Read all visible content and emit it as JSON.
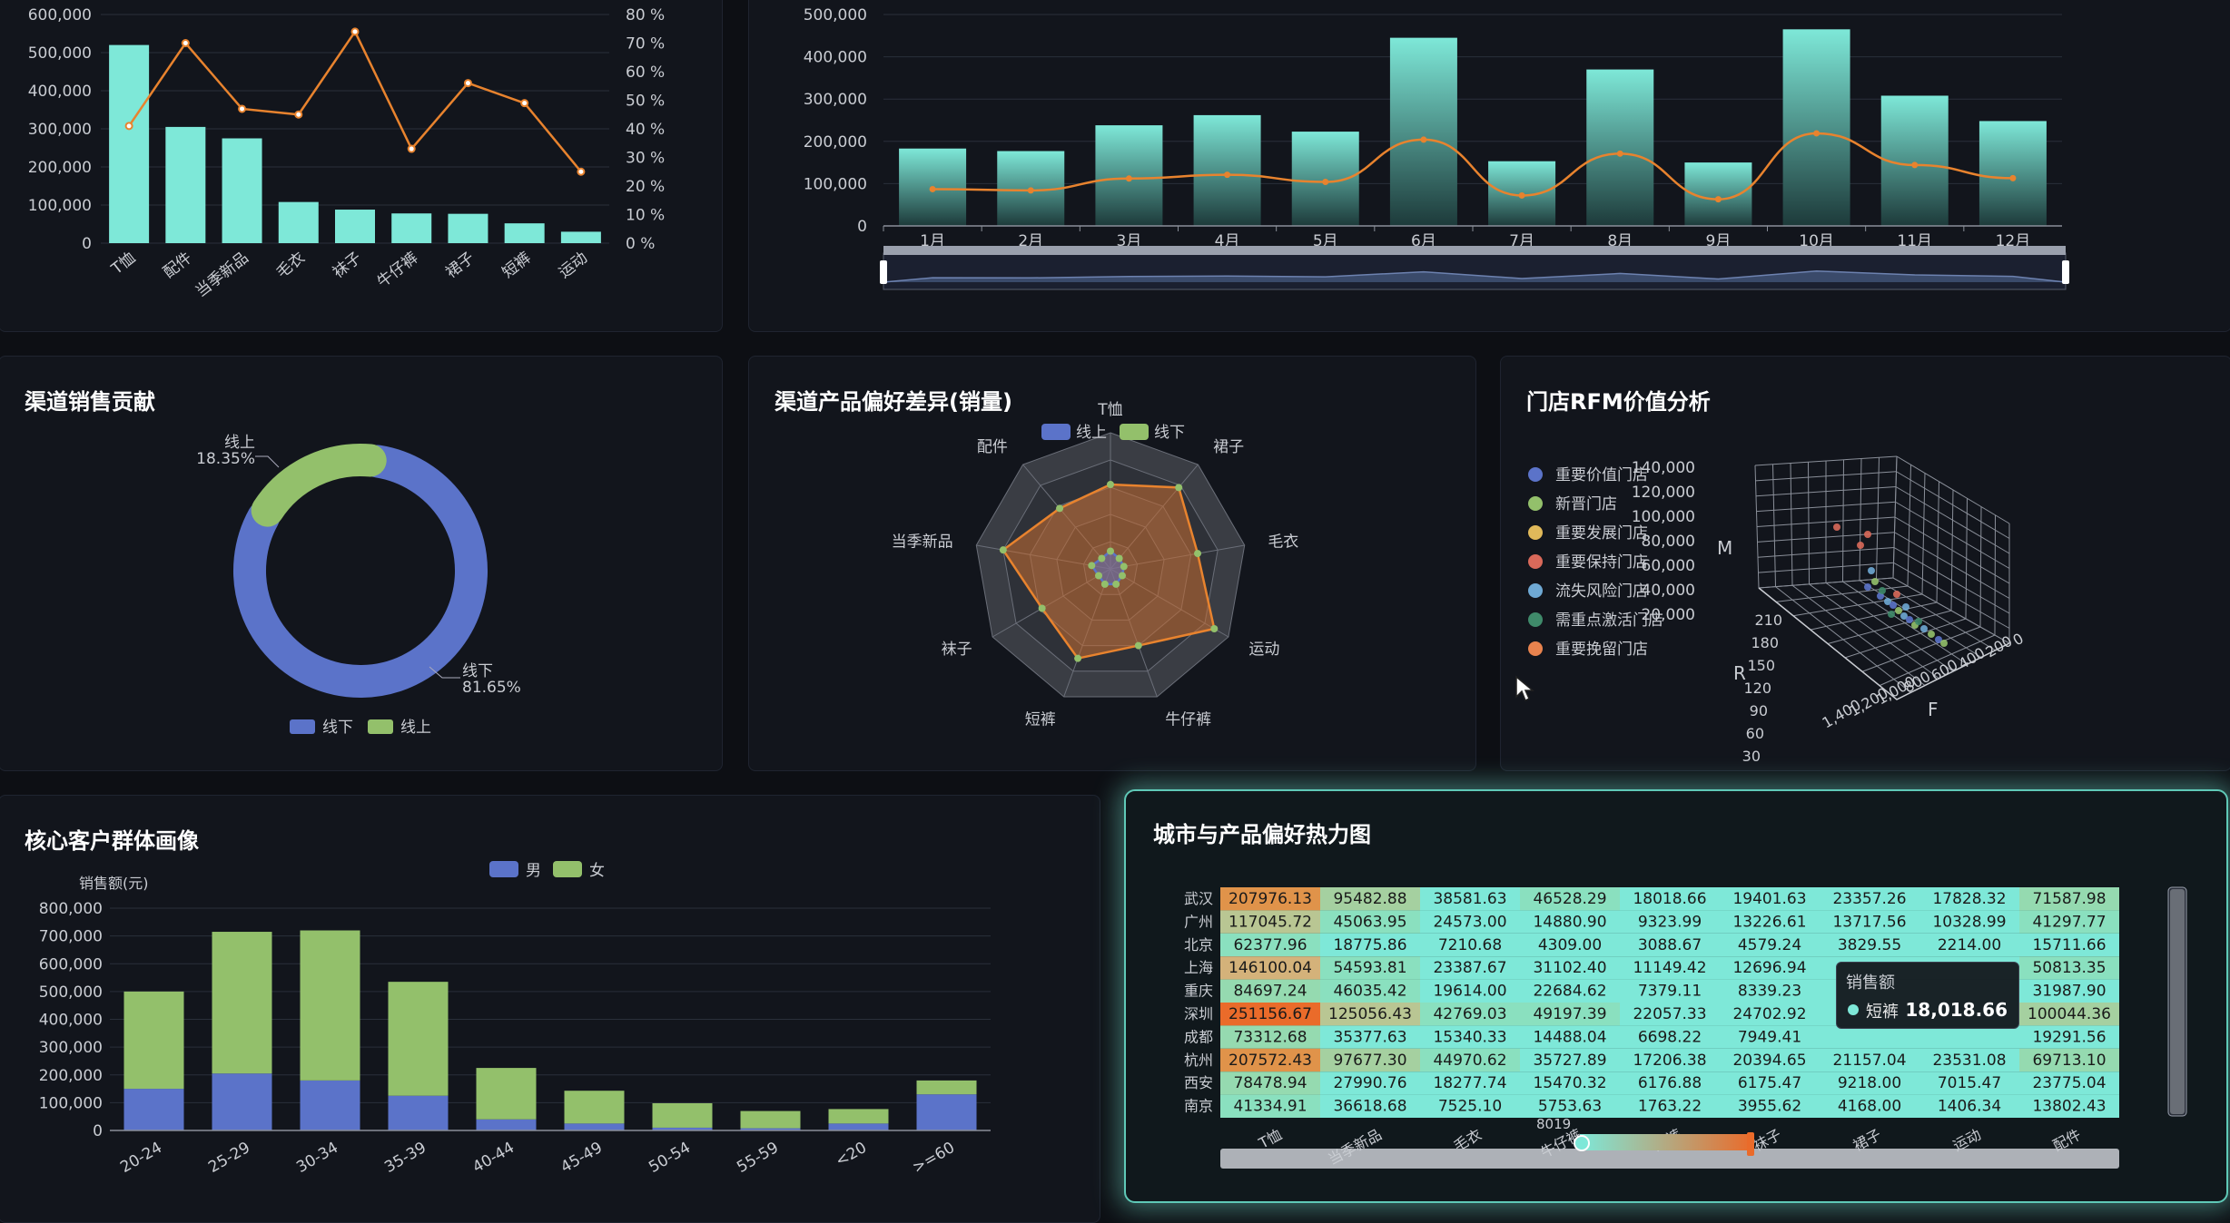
{
  "colors": {
    "mint": "#7ee8d8",
    "orange": "#e8832e",
    "blue": "#5b73c9",
    "green": "#93c06b",
    "panel": "#12151c"
  },
  "panels": {
    "channel_contribution": "渠道销售贡献",
    "channel_preference": "渠道产品偏好差异(销量)",
    "rfm": "门店RFM价值分析",
    "customers": "核心客户群体画像",
    "heatmap": "城市与产品偏好热力图"
  },
  "tooltip": {
    "title": "销售额",
    "name": "短裤",
    "value": "18,018.66"
  },
  "chart_data": [
    {
      "id": "pareto",
      "type": "bar",
      "categories": [
        "T恤",
        "配件",
        "当季新品",
        "毛衣",
        "袜子",
        "牛仔裤",
        "裙子",
        "短裤",
        "运动"
      ],
      "series": [
        {
          "values": [
            520000,
            305000,
            275000,
            108000,
            88000,
            78000,
            77000,
            52000,
            30000
          ]
        },
        {
          "values": [
            41,
            70,
            47,
            45,
            74,
            33,
            56,
            49,
            25
          ]
        }
      ],
      "ylim": [
        0,
        600000
      ],
      "y_ticks": [
        "600,000",
        "500,000",
        "400,000",
        "300,000",
        "200,000",
        "100,000",
        "0"
      ],
      "y2_ticks": [
        "80 %",
        "70 %",
        "60 %",
        "50 %",
        "40 %",
        "30 %",
        "20 %",
        "10 %",
        "0 %"
      ]
    },
    {
      "id": "monthly",
      "type": "bar",
      "categories": [
        "1月",
        "2月",
        "3月",
        "4月",
        "5月",
        "6月",
        "7月",
        "8月",
        "9月",
        "10月",
        "11月",
        "12月"
      ],
      "series": [
        {
          "values": [
            183000,
            177000,
            238000,
            262000,
            223000,
            445000,
            153000,
            370000,
            150000,
            465000,
            308000,
            248000
          ]
        },
        {
          "values": [
            87000,
            84000,
            112000,
            121000,
            104000,
            204000,
            72000,
            171000,
            63000,
            219000,
            144000,
            113000
          ]
        }
      ],
      "ylim": [
        0,
        500000
      ],
      "y_ticks": [
        "500,000",
        "400,000",
        "300,000",
        "200,000",
        "100,000",
        "0"
      ]
    },
    {
      "id": "channel_donut",
      "type": "pie",
      "series": [
        {
          "name": "线下",
          "value": 81.65,
          "label": "81.65%"
        },
        {
          "name": "线上",
          "value": 18.35,
          "label": "18.35%"
        }
      ],
      "legend": [
        "线下",
        "线上"
      ]
    },
    {
      "id": "radar",
      "type": "radar",
      "indicators": [
        "T恤",
        "裙子",
        "毛衣",
        "运动",
        "牛仔裤",
        "短裤",
        "袜子",
        "当季新品",
        "配件"
      ],
      "series": [
        {
          "name": "线上",
          "values": [
            0.13,
            0.1,
            0.1,
            0.1,
            0.12,
            0.12,
            0.1,
            0.14,
            0.1
          ]
        },
        {
          "name": "线下",
          "values": [
            0.62,
            0.78,
            0.65,
            0.88,
            0.6,
            0.7,
            0.58,
            0.8,
            0.58
          ]
        }
      ]
    },
    {
      "id": "rfm3d",
      "type": "scatter",
      "legend": [
        "重要价值门店",
        "新晋门店",
        "重要发展门店",
        "重要保持门店",
        "流失风险门店",
        "需重点激活门店",
        "重要挽留门店"
      ],
      "legend_colors": [
        "#5b73c9",
        "#93c06b",
        "#e0b95a",
        "#d9695a",
        "#6fa9d4",
        "#3f8a6a",
        "#e8834e"
      ],
      "axis_m": [
        "140,000",
        "120,000",
        "100,000",
        "80,000",
        "60,000",
        "40,000",
        "20,000"
      ],
      "axis_r": [
        "210",
        "180",
        "150",
        "120",
        "90",
        "60",
        "30",
        "0"
      ],
      "axis_f": [
        "1,400",
        "1,200",
        "1,000",
        "800",
        "600",
        "400",
        "200",
        "0"
      ],
      "labels": {
        "m": "M",
        "r": "R",
        "f": "F"
      }
    },
    {
      "id": "customers",
      "type": "bar",
      "ylabel": "销售额(元)",
      "categories": [
        "20-24",
        "25-29",
        "30-34",
        "35-39",
        "40-44",
        "45-49",
        "50-54",
        "55-59",
        "<20",
        ">=60"
      ],
      "series": [
        {
          "name": "男",
          "values": [
            150000,
            205000,
            180000,
            125000,
            40000,
            25000,
            10000,
            8000,
            25000,
            130000
          ]
        },
        {
          "name": "女",
          "values": [
            350000,
            510000,
            540000,
            410000,
            185000,
            118000,
            88000,
            62000,
            52000,
            50000
          ]
        }
      ],
      "ylim": [
        0,
        800000
      ],
      "y_ticks": [
        "800,000",
        "700,000",
        "600,000",
        "500,000",
        "400,000",
        "300,000",
        "200,000",
        "100,000",
        "0"
      ]
    },
    {
      "id": "heatmap",
      "type": "heatmap",
      "rows": [
        "武汉",
        "广州",
        "北京",
        "上海",
        "重庆",
        "深圳",
        "成都",
        "杭州",
        "西安",
        "南京"
      ],
      "cols": [
        "T恤",
        "当季新品",
        "毛衣",
        "牛仔裤",
        "短裤",
        "袜子",
        "裙子",
        "运动",
        "配件"
      ],
      "values": [
        [
          "207976.13",
          "95482.88",
          "38581.63",
          "46528.29",
          "18018.66",
          "19401.63",
          "23357.26",
          "17828.32",
          "71587.98"
        ],
        [
          "117045.72",
          "45063.95",
          "24573.00",
          "14880.90",
          "9323.99",
          "13226.61",
          "13717.56",
          "10328.99",
          "41297.77"
        ],
        [
          "62377.96",
          "18775.86",
          "7210.68",
          "4309.00",
          "3088.67",
          "4579.24",
          "3829.55",
          "2214.00",
          "15711.66"
        ],
        [
          "146100.04",
          "54593.81",
          "23387.67",
          "31102.40",
          "11149.42",
          "12696.94",
          "",
          "",
          "50813.35"
        ],
        [
          "84697.24",
          "46035.42",
          "19614.00",
          "22684.62",
          "7379.11",
          "8339.23",
          "",
          "",
          "31987.90"
        ],
        [
          "251156.67",
          "125056.43",
          "42769.03",
          "49197.39",
          "22057.33",
          "24702.92",
          "",
          "",
          "100044.36"
        ],
        [
          "73312.68",
          "35377.63",
          "15340.33",
          "14488.04",
          "6698.22",
          "7949.41",
          "",
          "",
          "19291.56"
        ],
        [
          "207572.43",
          "97677.30",
          "44970.62",
          "35727.89",
          "17206.38",
          "20394.65",
          "21157.04",
          "23531.08",
          "69713.10"
        ],
        [
          "78478.94",
          "27990.76",
          "18277.74",
          "15470.32",
          "6176.88",
          "6175.47",
          "9218.00",
          "7015.47",
          "23775.04"
        ],
        [
          "41334.91",
          "36618.68",
          "7525.10",
          "5753.63",
          "1763.22",
          "3955.62",
          "4168.00",
          "1406.34",
          "13802.43"
        ]
      ],
      "slider_value": "8019"
    }
  ]
}
